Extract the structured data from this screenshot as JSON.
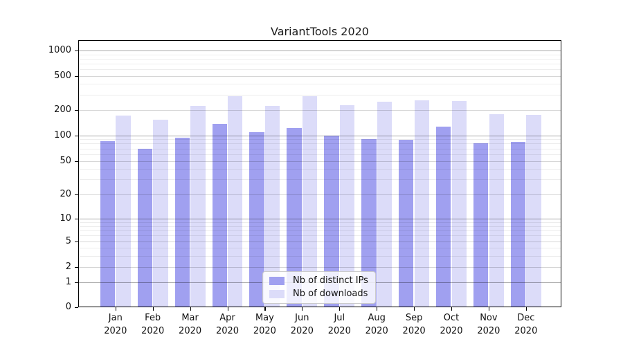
{
  "title": "VariantTools 2020",
  "colors": {
    "distinct_ips": "#a0a0f0",
    "downloads": "#dcdcf9",
    "grid_strong": "#aaaaaa",
    "grid_minor": "#eeeeee",
    "axis": "#000000"
  },
  "legend": {
    "items": [
      {
        "label": "Nb of distinct IPs",
        "series": "distinct_ips"
      },
      {
        "label": "Nb of downloads",
        "series": "downloads"
      }
    ]
  },
  "chart_data": {
    "type": "bar",
    "title": "VariantTools 2020",
    "categories": [
      "Jan",
      "Feb",
      "Mar",
      "Apr",
      "May",
      "Jun",
      "Jul",
      "Aug",
      "Sep",
      "Oct",
      "Nov",
      "Dec"
    ],
    "category_sublabel": "2020",
    "series": [
      {
        "name": "Nb of distinct IPs",
        "color": "#a0a0f0",
        "values": [
          86,
          69,
          93,
          137,
          108,
          122,
          99,
          90,
          89,
          126,
          80,
          83
        ]
      },
      {
        "name": "Nb of downloads",
        "color": "#dcdcf9",
        "values": [
          170,
          152,
          223,
          287,
          221,
          286,
          225,
          248,
          256,
          253,
          178,
          173
        ]
      }
    ],
    "xlabel": "",
    "ylabel": "",
    "yscale": "symlog",
    "ylim": [
      0,
      1000
    ],
    "yticks": [
      0,
      1,
      2,
      5,
      10,
      20,
      50,
      100,
      200,
      500,
      1000
    ],
    "ytick_labels": [
      "0",
      "1",
      "2",
      "5",
      "10",
      "20",
      "50",
      "100",
      "200",
      "500",
      "1000"
    ],
    "minor_gridlines": [
      3,
      4,
      6,
      7,
      8,
      9,
      30,
      40,
      60,
      70,
      80,
      90,
      300,
      400,
      600,
      700,
      800,
      900
    ],
    "grid": true,
    "legend_position": "lower center"
  }
}
